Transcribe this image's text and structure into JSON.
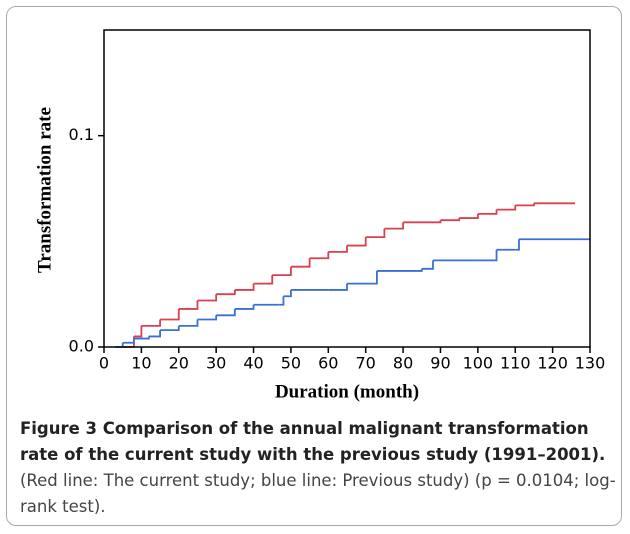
{
  "chart_data": {
    "type": "step",
    "ylabel": "Transformation rate",
    "xlabel": "Duration (month)",
    "xlim": [
      0,
      130
    ],
    "xticks": [
      0,
      10,
      20,
      30,
      40,
      50,
      60,
      70,
      80,
      90,
      100,
      110,
      120,
      130
    ],
    "ylim": [
      0,
      0.15
    ],
    "yticks": [
      {
        "value": 0,
        "label": "0.0"
      },
      0.1
    ],
    "series": [
      {
        "color": "#d9404e",
        "x": [
          5,
          8,
          10,
          15,
          20,
          25,
          30,
          35,
          40,
          45,
          50,
          55,
          60,
          65,
          70,
          75,
          80,
          90,
          95,
          100,
          105,
          110,
          115,
          126
        ],
        "values": [
          0,
          0.005,
          0.01,
          0.013,
          0.018,
          0.022,
          0.025,
          0.027,
          0.03,
          0.034,
          0.038,
          0.042,
          0.045,
          0.048,
          0.052,
          0.056,
          0.059,
          0.06,
          0.061,
          0.063,
          0.065,
          0.067,
          0.068,
          0.068
        ]
      },
      {
        "color": "#3b6fd6",
        "x": [
          3,
          5,
          8,
          12,
          15,
          20,
          25,
          30,
          35,
          40,
          47,
          48,
          50,
          60,
          65,
          72,
          73,
          85,
          88,
          100,
          105,
          110,
          111,
          130
        ],
        "values": [
          0,
          0.002,
          0.004,
          0.005,
          0.008,
          0.01,
          0.013,
          0.015,
          0.018,
          0.02,
          0.02,
          0.024,
          0.027,
          0.027,
          0.03,
          0.03,
          0.036,
          0.037,
          0.041,
          0.041,
          0.046,
          0.046,
          0.051,
          0.051
        ]
      }
    ]
  },
  "caption": {
    "title": "Figure 3 Comparison of the annual malignant transformation rate of the current study with the previous study (1991–2001).",
    "text": "(Red line: The current study; blue line: Previous study) (p = 0.0104; log-rank test)."
  }
}
